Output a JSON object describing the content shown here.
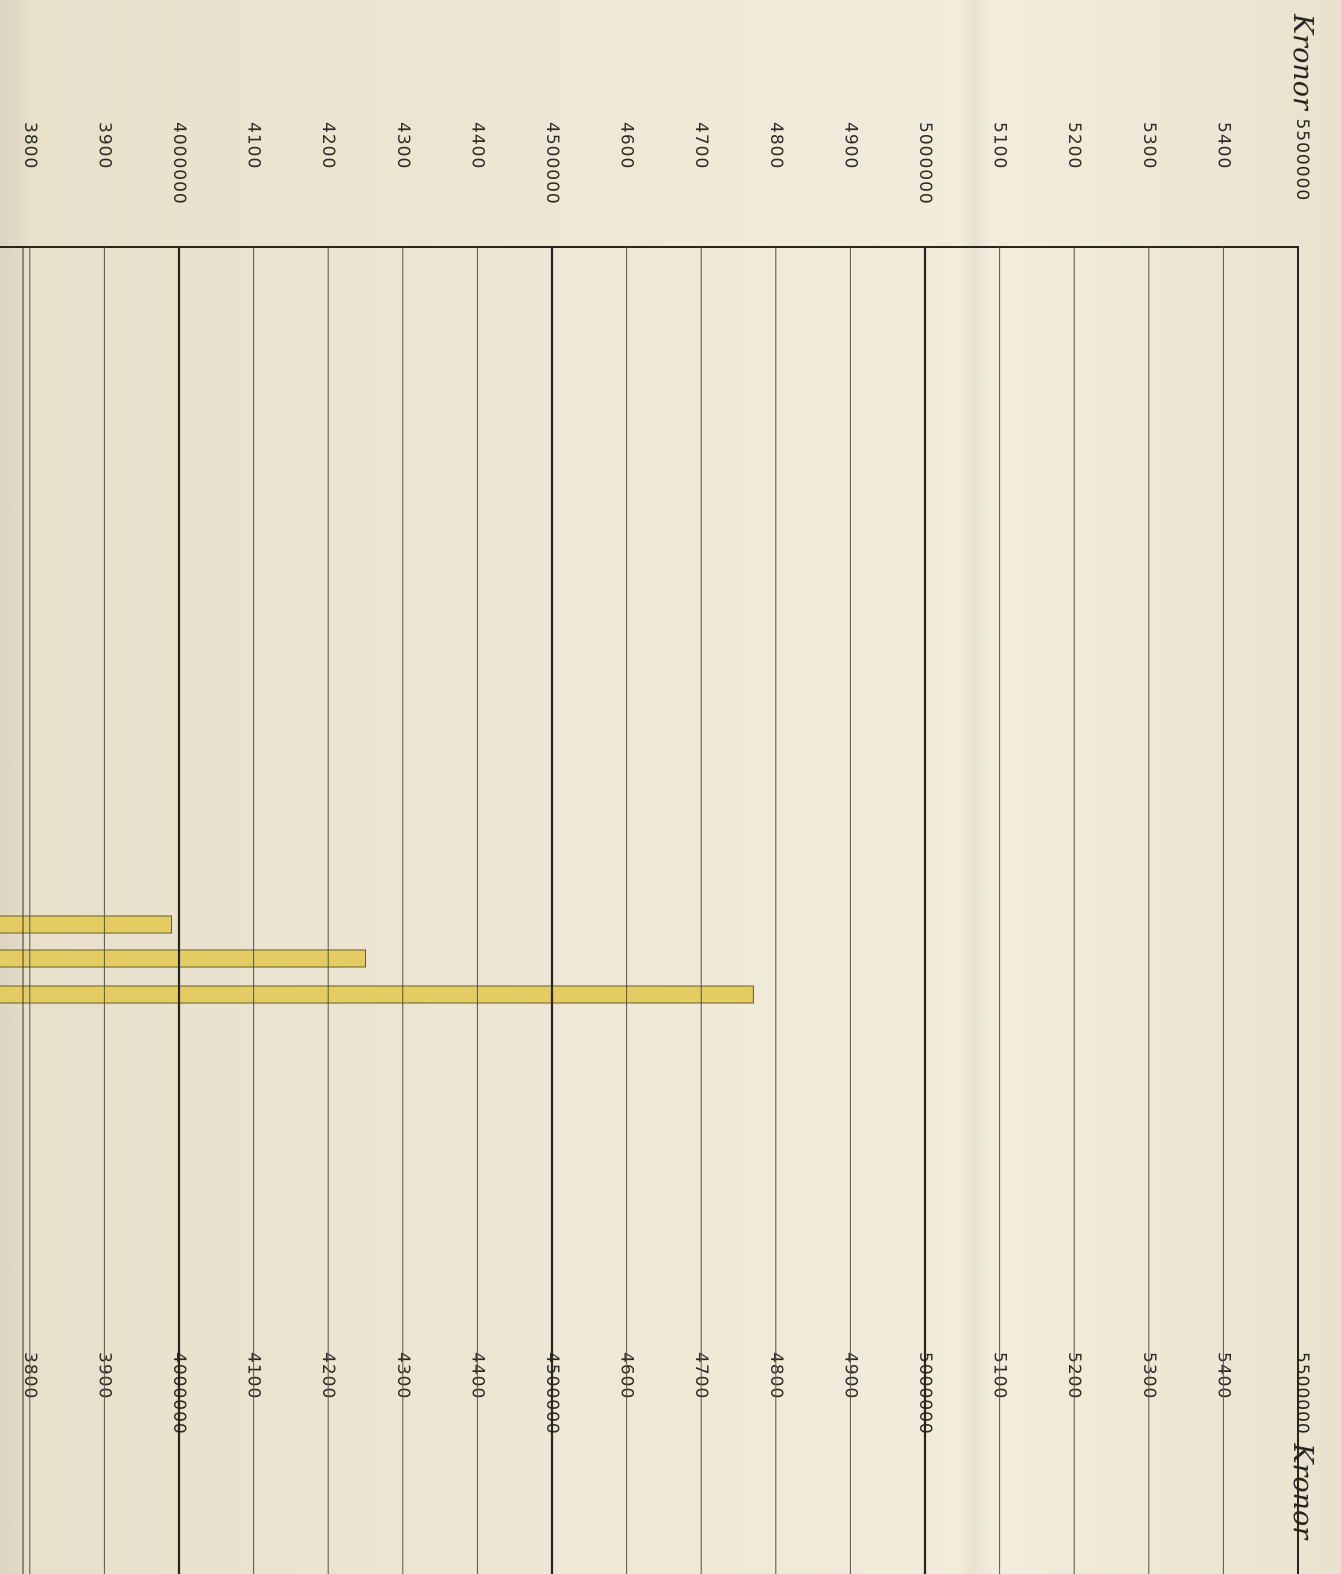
{
  "chart_data": {
    "type": "bar",
    "orientation": "horizontal-bars, printed rotated",
    "unit": "Kronor",
    "axis_ticks": [
      "5400",
      "5300",
      "5200",
      "5100",
      "5000000",
      "4900",
      "4800",
      "4700",
      "4600",
      "4500000",
      "4400",
      "4300",
      "4200",
      "4100",
      "4000000",
      "3900",
      "3800"
    ],
    "major_ticks": [
      "5000000",
      "4500000",
      "4000000"
    ],
    "axis_label_top": {
      "unit": "Kronor",
      "value": "5500000"
    },
    "axis_label_bottom": {
      "value": "5500000",
      "unit": "Kronor"
    },
    "xlim": [
      3780000,
      5500000
    ],
    "values": [
      3990000,
      4250000,
      4770000
    ],
    "bar_color": "#e3cd63",
    "grid": true
  }
}
